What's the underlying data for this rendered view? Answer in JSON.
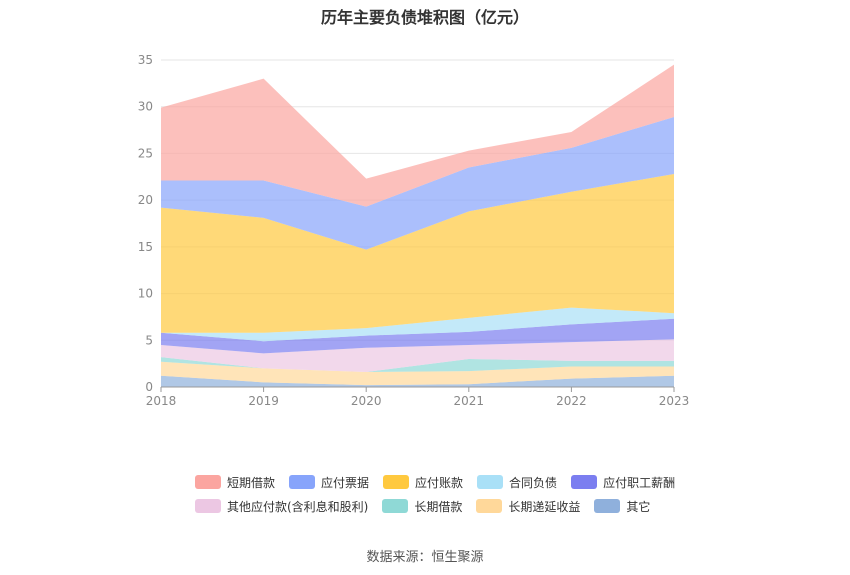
{
  "page": {
    "title": "历年主要负债堆积图（亿元）",
    "source": "数据来源：恒生聚源"
  },
  "chart_data": {
    "type": "area",
    "stacked": true,
    "title": "历年主要负债堆积图（亿元）",
    "x": [
      "2018",
      "2019",
      "2020",
      "2021",
      "2022",
      "2023"
    ],
    "y_ticks": [
      0,
      5,
      10,
      15,
      20,
      25,
      30,
      35
    ],
    "ylim": [
      0,
      35
    ],
    "grid": true,
    "legend_position": "bottom",
    "series": [
      {
        "name": "其它",
        "color": "#8fb0dc",
        "values": [
          1.2,
          0.5,
          0.2,
          0.3,
          0.9,
          1.2
        ]
      },
      {
        "name": "长期递延收益",
        "color": "#ffd89a",
        "values": [
          1.5,
          1.5,
          1.4,
          1.4,
          1.3,
          1.0
        ]
      },
      {
        "name": "长期借款",
        "color": "#8fd9d6",
        "values": [
          0.5,
          0.0,
          0.0,
          1.3,
          0.6,
          0.6
        ]
      },
      {
        "name": "其他应付款(含利息和股利)",
        "color": "#ecc7e3",
        "values": [
          1.3,
          1.6,
          2.6,
          1.5,
          2.0,
          2.3
        ]
      },
      {
        "name": "应付职工薪酬",
        "color": "#7b7ef0",
        "values": [
          1.3,
          1.3,
          1.3,
          1.4,
          1.9,
          2.2
        ]
      },
      {
        "name": "合同负债",
        "color": "#a9e0f7",
        "values": [
          0.0,
          0.9,
          0.8,
          1.5,
          1.8,
          0.6
        ]
      },
      {
        "name": "应付账款",
        "color": "#ffc93f",
        "values": [
          13.4,
          12.3,
          8.4,
          11.4,
          12.4,
          14.9
        ]
      },
      {
        "name": "应付票据",
        "color": "#87a4fb",
        "values": [
          2.9,
          4.0,
          4.6,
          4.7,
          4.7,
          6.1
        ]
      },
      {
        "name": "短期借款",
        "color": "#fba5a0",
        "values": [
          7.8,
          10.9,
          3.0,
          1.8,
          1.7,
          5.6
        ]
      }
    ]
  },
  "legend_rows": [
    [
      {
        "label": "短期借款",
        "color": "#fba5a0"
      },
      {
        "label": "应付票据",
        "color": "#87a4fb"
      },
      {
        "label": "应付账款",
        "color": "#ffc93f"
      },
      {
        "label": "合同负债",
        "color": "#a9e0f7"
      },
      {
        "label": "应付职工薪酬",
        "color": "#7b7ef0"
      }
    ],
    [
      {
        "label": "其他应付款(含利息和股利)",
        "color": "#ecc7e3"
      },
      {
        "label": "长期借款",
        "color": "#8fd9d6"
      },
      {
        "label": "长期递延收益",
        "color": "#ffd89a"
      },
      {
        "label": "其它",
        "color": "#8fb0dc"
      }
    ]
  ]
}
